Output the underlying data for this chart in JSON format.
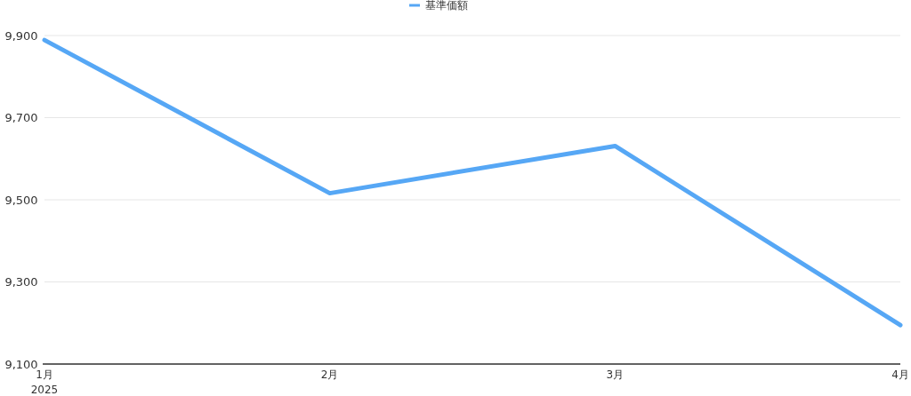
{
  "chart_data": {
    "type": "line",
    "categories": [
      "1月",
      "2月",
      "3月",
      "4月"
    ],
    "series": [
      {
        "name": "基準価額",
        "color": "#56a7f5",
        "values": [
          9889,
          9516,
          9631,
          9195
        ]
      }
    ],
    "ylim": [
      9100,
      9900
    ],
    "yticks": [
      {
        "value": 9100,
        "label": "9,100"
      },
      {
        "value": 9300,
        "label": "9,300"
      },
      {
        "value": 9500,
        "label": "9,500"
      },
      {
        "value": 9700,
        "label": "9,700"
      },
      {
        "value": 9900,
        "label": "9,900"
      }
    ],
    "grid": "y",
    "legend": "top",
    "marker": "none",
    "line_style": "solid",
    "annotations": [
      "2025"
    ]
  }
}
